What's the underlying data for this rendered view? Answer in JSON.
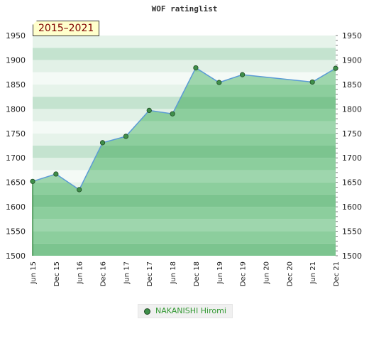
{
  "chart_data": {
    "type": "area",
    "title": "WOF ratinglist",
    "range_label": "2015–2021",
    "x": [
      "2015-06",
      "2015-12",
      "2016-06",
      "2016-12",
      "2017-06",
      "2017-12",
      "2018-06",
      "2018-12",
      "2019-06",
      "2019-12",
      "2021-06",
      "2021-12"
    ],
    "series": [
      {
        "name": "NAKANISHI Hiromi",
        "values": [
          1652,
          1667,
          1635,
          1731,
          1744,
          1797,
          1790,
          1884,
          1854,
          1870,
          1855,
          1883
        ]
      }
    ],
    "x_tick_labels": [
      "Jun 15",
      "Dec 15",
      "Jun 16",
      "Dec 16",
      "Jun 17",
      "Dec 17",
      "Jun 18",
      "Dec 18",
      "Jun 19",
      "Dec 19",
      "Jun 20",
      "Dec 20",
      "Jun 21",
      "Dec 21"
    ],
    "y_ticks": [
      1500,
      1550,
      1600,
      1650,
      1700,
      1750,
      1800,
      1850,
      1900,
      1950
    ],
    "ylim": [
      1500,
      1950
    ],
    "grid": "horizontal bands",
    "legend_position": "bottom-center",
    "colors": {
      "area": "#7cc48f",
      "line": "#5b9bd5",
      "marker": "#3f8f4a"
    }
  }
}
